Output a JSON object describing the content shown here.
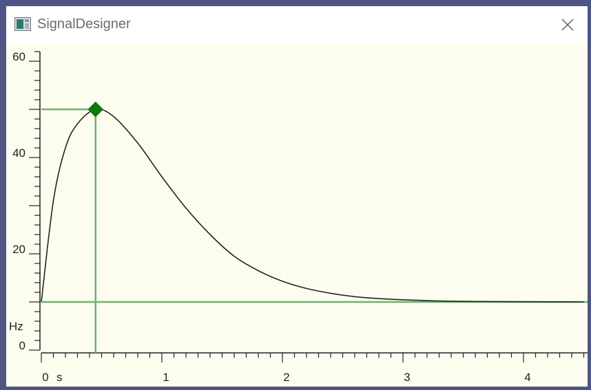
{
  "window": {
    "title": "SignalDesigner",
    "icons": {
      "app": "app-window-icon",
      "close": "close-icon"
    }
  },
  "chart_data": {
    "type": "line",
    "x_unit": "s",
    "y_unit": "Hz",
    "xlim": [
      0,
      4.5
    ],
    "ylim": [
      0,
      62
    ],
    "x_ticks": [
      0,
      1,
      2,
      3,
      4
    ],
    "y_ticks": [
      0,
      20,
      40,
      60
    ],
    "series": [
      {
        "x": [
          0,
          0.1,
          0.2,
          0.3,
          0.45,
          0.6,
          0.8,
          1.0,
          1.2,
          1.4,
          1.6,
          1.8,
          2.0,
          2.2,
          2.4,
          2.6,
          2.8,
          3.0,
          3.3,
          3.6,
          4.0,
          4.5
        ],
        "y": [
          10,
          31,
          42,
          47,
          50,
          48.5,
          43,
          36,
          29.5,
          24,
          19.5,
          16.5,
          14.3,
          12.8,
          11.8,
          11.1,
          10.7,
          10.45,
          10.2,
          10.1,
          10.05,
          10
        ]
      }
    ],
    "marker": {
      "x": 0.45,
      "y": 50
    },
    "baseline": 10
  },
  "colors": {
    "plot_bg": "#fdfdef",
    "curve": "#222222",
    "guide": "#6fb16f",
    "marker": "#0a7a0a",
    "axis": "#222222",
    "background": "#4f5686"
  }
}
